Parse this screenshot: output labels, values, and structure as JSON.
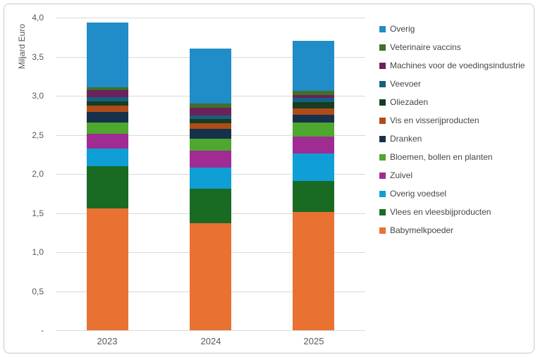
{
  "chart_data": {
    "type": "bar",
    "stacked": true,
    "title": "",
    "ylabel": "Miljard Euro",
    "xlabel": "",
    "categories": [
      "2023",
      "2024",
      "2025"
    ],
    "series": [
      {
        "name": "Babymelkpoeder",
        "color": "#E97132",
        "values": [
          1.56,
          1.37,
          1.51
        ]
      },
      {
        "name": "Vlees en vleesbijproducten",
        "color": "#196B24",
        "values": [
          0.54,
          0.44,
          0.4
        ]
      },
      {
        "name": "Overig voedsel",
        "color": "#0F9ED5",
        "values": [
          0.22,
          0.27,
          0.35
        ]
      },
      {
        "name": "Zuivel",
        "color": "#A02B93",
        "values": [
          0.19,
          0.22,
          0.22
        ]
      },
      {
        "name": "Bloemen, bollen en planten",
        "color": "#4EA72E",
        "values": [
          0.15,
          0.15,
          0.18
        ]
      },
      {
        "name": "Dranken",
        "color": "#16314B",
        "values": [
          0.13,
          0.13,
          0.1
        ]
      },
      {
        "name": "Vis en visserijproducten",
        "color": "#AF4C17",
        "values": [
          0.08,
          0.07,
          0.08
        ]
      },
      {
        "name": "Oliezaden",
        "color": "#163D20",
        "values": [
          0.06,
          0.05,
          0.08
        ]
      },
      {
        "name": "Veevoer",
        "color": "#156082",
        "values": [
          0.05,
          0.05,
          0.05
        ]
      },
      {
        "name": "Machines voor de voedingsindustrie",
        "color": "#6B2159",
        "values": [
          0.09,
          0.1,
          0.04
        ]
      },
      {
        "name": "Veterinaire vaccins",
        "color": "#41702A",
        "values": [
          0.04,
          0.05,
          0.05
        ]
      },
      {
        "name": "Overig",
        "color": "#208CC8",
        "values": [
          0.83,
          0.7,
          0.64
        ]
      }
    ],
    "totals": [
      3.94,
      3.6,
      3.7
    ],
    "ylim": [
      0,
      4.0
    ],
    "ytick_step": 0.5,
    "ytick_labels": [
      "-",
      "0,5",
      "1,0",
      "1,5",
      "2,0",
      "2,5",
      "3,0",
      "3,5",
      "4,0"
    ],
    "grid": true,
    "legend_position": "right",
    "legend_order": "reversed (top of stack listed first)"
  }
}
